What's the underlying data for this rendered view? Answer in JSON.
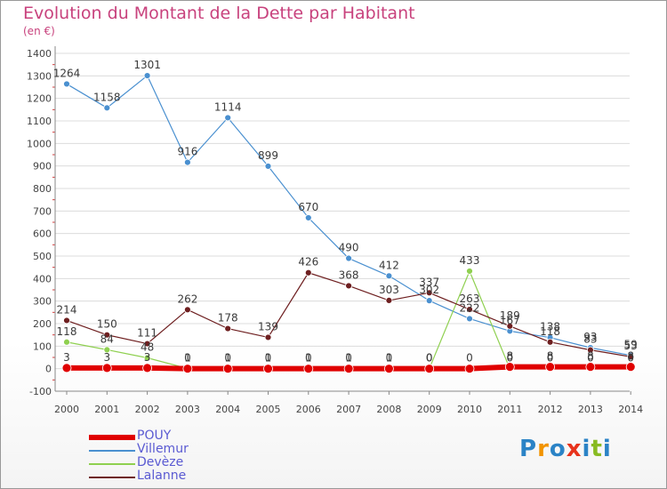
{
  "header": {
    "title": "Evolution du Montant de la Dette par Habitant",
    "unit": "(en €)"
  },
  "brand": {
    "text": "Proxiti",
    "colors": [
      "#2b83c6",
      "#f29400",
      "#2b83c6",
      "#e8331c",
      "#2b83c6",
      "#88bb22",
      "#2b83c6"
    ]
  },
  "colors": {
    "title": "#c8427d",
    "axis_text": "#444444",
    "grid": "#dcdcdc"
  },
  "chart_data": {
    "type": "line",
    "title": "Evolution du Montant de la Dette par Habitant",
    "ylabel": "(en €)",
    "x": [
      "2000",
      "2001",
      "2002",
      "2003",
      "2004",
      "2005",
      "2006",
      "2007",
      "2008",
      "2009",
      "2010",
      "2011",
      "2012",
      "2013",
      "2014"
    ],
    "ylim": [
      -100,
      1400
    ],
    "yticks": [
      -100,
      0,
      100,
      200,
      300,
      400,
      500,
      600,
      700,
      800,
      900,
      1000,
      1100,
      1200,
      1300,
      1400
    ],
    "grid": true,
    "legend_position": "bottom-left",
    "series": [
      {
        "name": "POUY",
        "color": "#e00000",
        "values": [
          3,
          3,
          3,
          0,
          0,
          0,
          0,
          0,
          0,
          0,
          0,
          8,
          8,
          8,
          8
        ]
      },
      {
        "name": "Villemur",
        "color": "#4a90d0",
        "values": [
          1264,
          1158,
          1301,
          916,
          1114,
          899,
          670,
          490,
          412,
          302,
          222,
          167,
          138,
          93,
          59
        ]
      },
      {
        "name": "Devèze",
        "color": "#8fd050",
        "values": [
          118,
          84,
          48,
          1,
          1,
          1,
          1,
          1,
          1,
          0,
          433,
          0,
          0,
          0,
          0
        ]
      },
      {
        "name": "Lalanne",
        "color": "#6e1f20",
        "values": [
          214,
          150,
          111,
          262,
          178,
          139,
          426,
          368,
          303,
          337,
          263,
          189,
          118,
          83,
          53
        ]
      }
    ],
    "data_labels": [
      [
        "3",
        "3",
        "3",
        "0",
        "0",
        "0",
        "0",
        "0",
        "0",
        "0",
        "0",
        "8",
        "8",
        "8",
        "8"
      ],
      [
        "1264",
        "1158",
        "1301",
        "916",
        "1114",
        "899",
        "670",
        "490",
        "412",
        "302",
        "222",
        "167",
        "138",
        "93",
        "59"
      ],
      [
        "118",
        "84",
        "48",
        "1",
        "1",
        "1",
        "1",
        "1",
        "1",
        "0",
        "433",
        "0",
        "0",
        "0",
        "0"
      ],
      [
        "214",
        "150",
        "111",
        "262",
        "178",
        "139",
        "426",
        "368",
        "303",
        "337",
        "263",
        "189",
        "118",
        "83",
        "53"
      ]
    ]
  }
}
